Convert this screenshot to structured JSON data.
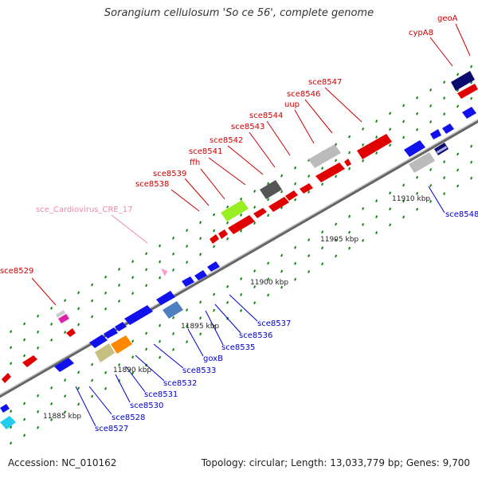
{
  "title": "Sorangium cellulosum 'So ce 56', complete genome",
  "footer": {
    "accession": "Accession: NC_010162",
    "topology": "Topology: circular; Length: 13,033,779 bp; Genes: 9,700"
  },
  "colors": {
    "backbone": "#888888",
    "upper_label": "#cc0000",
    "lower_label": "#0000cc",
    "rna_label": "#ee88aa",
    "dot": "#118811"
  },
  "ticks": [
    "11885 kbp",
    "11890 kbp",
    "11895 kbp",
    "11900 kbp",
    "11905 kbp",
    "11910 kbp"
  ],
  "upper_labels": [
    "sce8529",
    "sce_Cardiovirus_CRE_17",
    "sce8538",
    "sce8539",
    "ffh",
    "sce8541",
    "sce8542",
    "sce8543",
    "sce8544",
    "uup",
    "sce8546",
    "sce8547",
    "cypA8",
    "geoA"
  ],
  "lower_labels": [
    "sce8527",
    "sce8528",
    "sce8530",
    "sce8531",
    "sce8532",
    "sce8533",
    "goxB",
    "sce8535",
    "sce8536",
    "sce8537",
    "sce8548"
  ]
}
